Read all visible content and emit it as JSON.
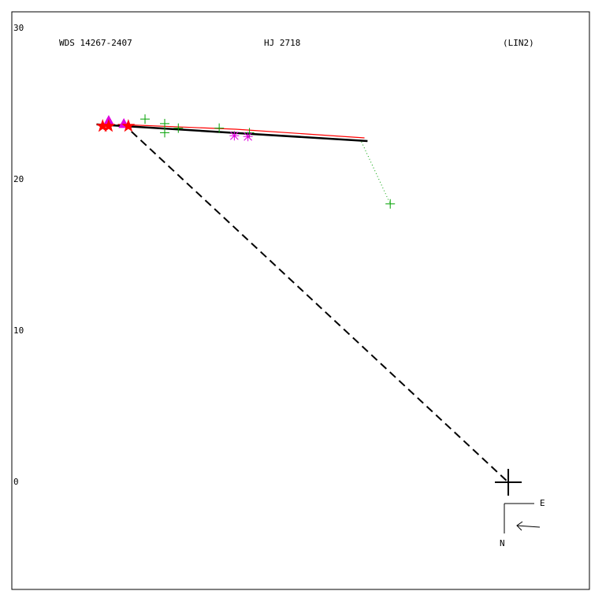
{
  "chart_data": {
    "type": "scatter",
    "title": "WDS 14267-2407",
    "subtitle": "HJ 2718",
    "annotations": [
      "(LIN2)",
      "E",
      "N"
    ],
    "xlim": [
      -32.8,
      5.36
    ],
    "ylim": [
      -7.08,
      31.09
    ],
    "yticks": [
      0,
      10,
      20,
      30
    ],
    "series": [
      {
        "mode": "line",
        "dash": "solid",
        "color": "#ff0000",
        "x": [
          -25.8,
          -18.0,
          -9.5
        ],
        "y": [
          23.65,
          23.33,
          22.76
        ]
      },
      {
        "mode": "line",
        "dash": "solid",
        "color": "#000000",
        "x": [
          -27.2,
          -9.3
        ],
        "y": [
          23.65,
          22.55
        ]
      },
      {
        "mode": "line",
        "dash": "dashed",
        "color": "#000000",
        "x": [
          -24.9,
          0
        ],
        "y": [
          23.18,
          0
        ]
      },
      {
        "mode": "line",
        "dash": "dotted",
        "color": "#00a000",
        "x": [
          -9.7,
          -7.8
        ],
        "y": [
          22.5,
          18.4
        ]
      },
      {
        "mode": "markers",
        "marker": "plus",
        "color": "#00a000",
        "x": [
          -24.0,
          -22.7,
          -22.7,
          -21.8,
          -19.1,
          -17.1,
          -7.8
        ],
        "y": [
          24.0,
          23.7,
          23.1,
          23.4,
          23.4,
          23.1,
          18.4
        ]
      },
      {
        "mode": "markers",
        "marker": "triangle",
        "color": "#e000e0",
        "x": [
          -26.4,
          -25.4
        ],
        "y": [
          23.85,
          23.65
        ]
      },
      {
        "mode": "markers",
        "marker": "star",
        "color": "#ff0000",
        "x": [
          -26.8,
          -26.4,
          -25.1
        ],
        "y": [
          23.54,
          23.54,
          23.54
        ]
      },
      {
        "mode": "markers",
        "marker": "asterisk",
        "color": "#e000e0",
        "x": [
          -18.1,
          -17.2
        ],
        "y": [
          22.9,
          22.85
        ]
      },
      {
        "mode": "markers",
        "marker": "primary",
        "color": "#000000",
        "x": [
          0
        ],
        "y": [
          0
        ]
      }
    ]
  }
}
